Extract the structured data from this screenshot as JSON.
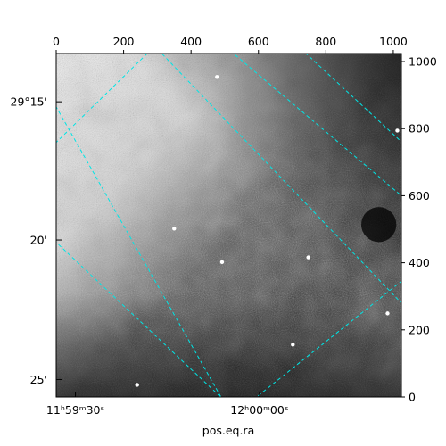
{
  "chart_data": {
    "type": "heatmap",
    "title": "",
    "xlabel": "pos.eq.ra",
    "ylabel": "",
    "colormap": "gray",
    "pixel_axes": {
      "x": {
        "range": [
          0,
          1024
        ],
        "ticks": [
          0,
          200,
          400,
          600,
          800,
          1000
        ],
        "position": "top"
      },
      "y": {
        "range": [
          0,
          1024
        ],
        "ticks": [
          0,
          200,
          400,
          600,
          800,
          1000
        ],
        "position": "right"
      }
    },
    "world_axes": {
      "ra": {
        "position": "bottom",
        "ticks": [
          {
            "label": "11ʰ59ᵐ30ˢ",
            "px": 57
          },
          {
            "label": "12ʰ00ᵐ00ˢ",
            "px": 603
          }
        ]
      },
      "dec": {
        "position": "left",
        "ticks": [
          {
            "label": "29°15'",
            "py": 880
          },
          {
            "label": "20'",
            "py": 468
          },
          {
            "label": "25'",
            "py": 52
          }
        ]
      }
    },
    "grid": true,
    "grid_color": "#00e5e5",
    "grid_lines": {
      "ra": [
        [
          [
            270,
            1024
          ],
          [
            -60,
            700
          ]
        ],
        [
          [
            -20,
            900
          ],
          [
            500,
            -20
          ]
        ],
        [
          [
            460,
            1080
          ],
          [
            1024,
            600
          ]
        ],
        [
          [
            570,
            -20
          ],
          [
            1080,
            390
          ]
        ]
      ],
      "dec": [
        [
          [
            250,
            1090
          ],
          [
            1024,
            280
          ]
        ],
        [
          [
            -20,
            480
          ],
          [
            530,
            -40
          ]
        ],
        [
          [
            670,
            1090
          ],
          [
            1100,
            690
          ]
        ]
      ]
    },
    "sources": [
      {
        "x": 350,
        "y": 502
      },
      {
        "x": 492,
        "y": 402
      },
      {
        "x": 748,
        "y": 416
      },
      {
        "x": 983,
        "y": 249
      },
      {
        "x": 240,
        "y": 36
      },
      {
        "x": 1012,
        "y": 794
      },
      {
        "x": 477,
        "y": 954
      },
      {
        "x": 702,
        "y": 156
      }
    ],
    "dark_blob": {
      "x": 957,
      "y": 514,
      "r": 52
    }
  }
}
